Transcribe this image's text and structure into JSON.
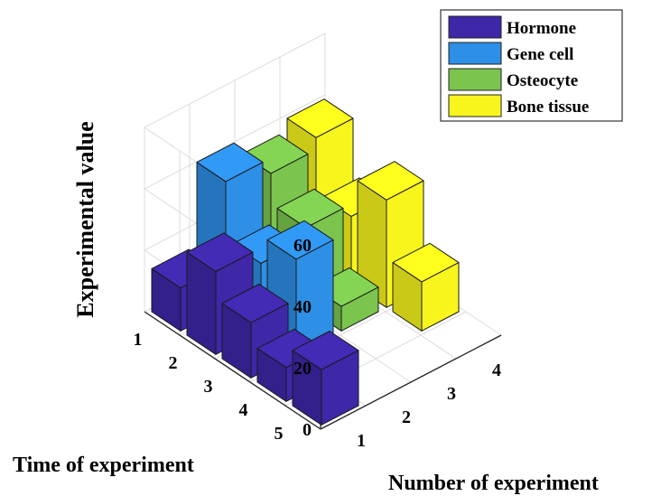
{
  "chart_data": {
    "type": "bar3d",
    "title": "",
    "xlabel": "Number of experiment",
    "ylabel": "Time of experiment",
    "zlabel": "Experimental value",
    "x_ticks": [
      "1",
      "2",
      "3",
      "4"
    ],
    "y_ticks": [
      "1",
      "2",
      "3",
      "4",
      "5"
    ],
    "zlim": [
      0,
      60
    ],
    "z_ticks": [
      "0",
      "20",
      "40",
      "60"
    ],
    "grid": true,
    "legend_position": "top-right",
    "series": [
      {
        "name": "Hormone",
        "color": "#3f27a8",
        "values": [
          14,
          27,
          18,
          11,
          18
        ]
      },
      {
        "name": "Gene cell",
        "color": "#2d8fe5",
        "values": [
          41,
          22,
          31
        ]
      },
      {
        "name": "Osteocyte",
        "color": "#7bc54e",
        "values": [
          36,
          26,
          8
        ]
      },
      {
        "name": "Bone tissue",
        "color": "#f7f51c",
        "values": [
          40,
          22,
          35,
          16
        ]
      }
    ]
  }
}
